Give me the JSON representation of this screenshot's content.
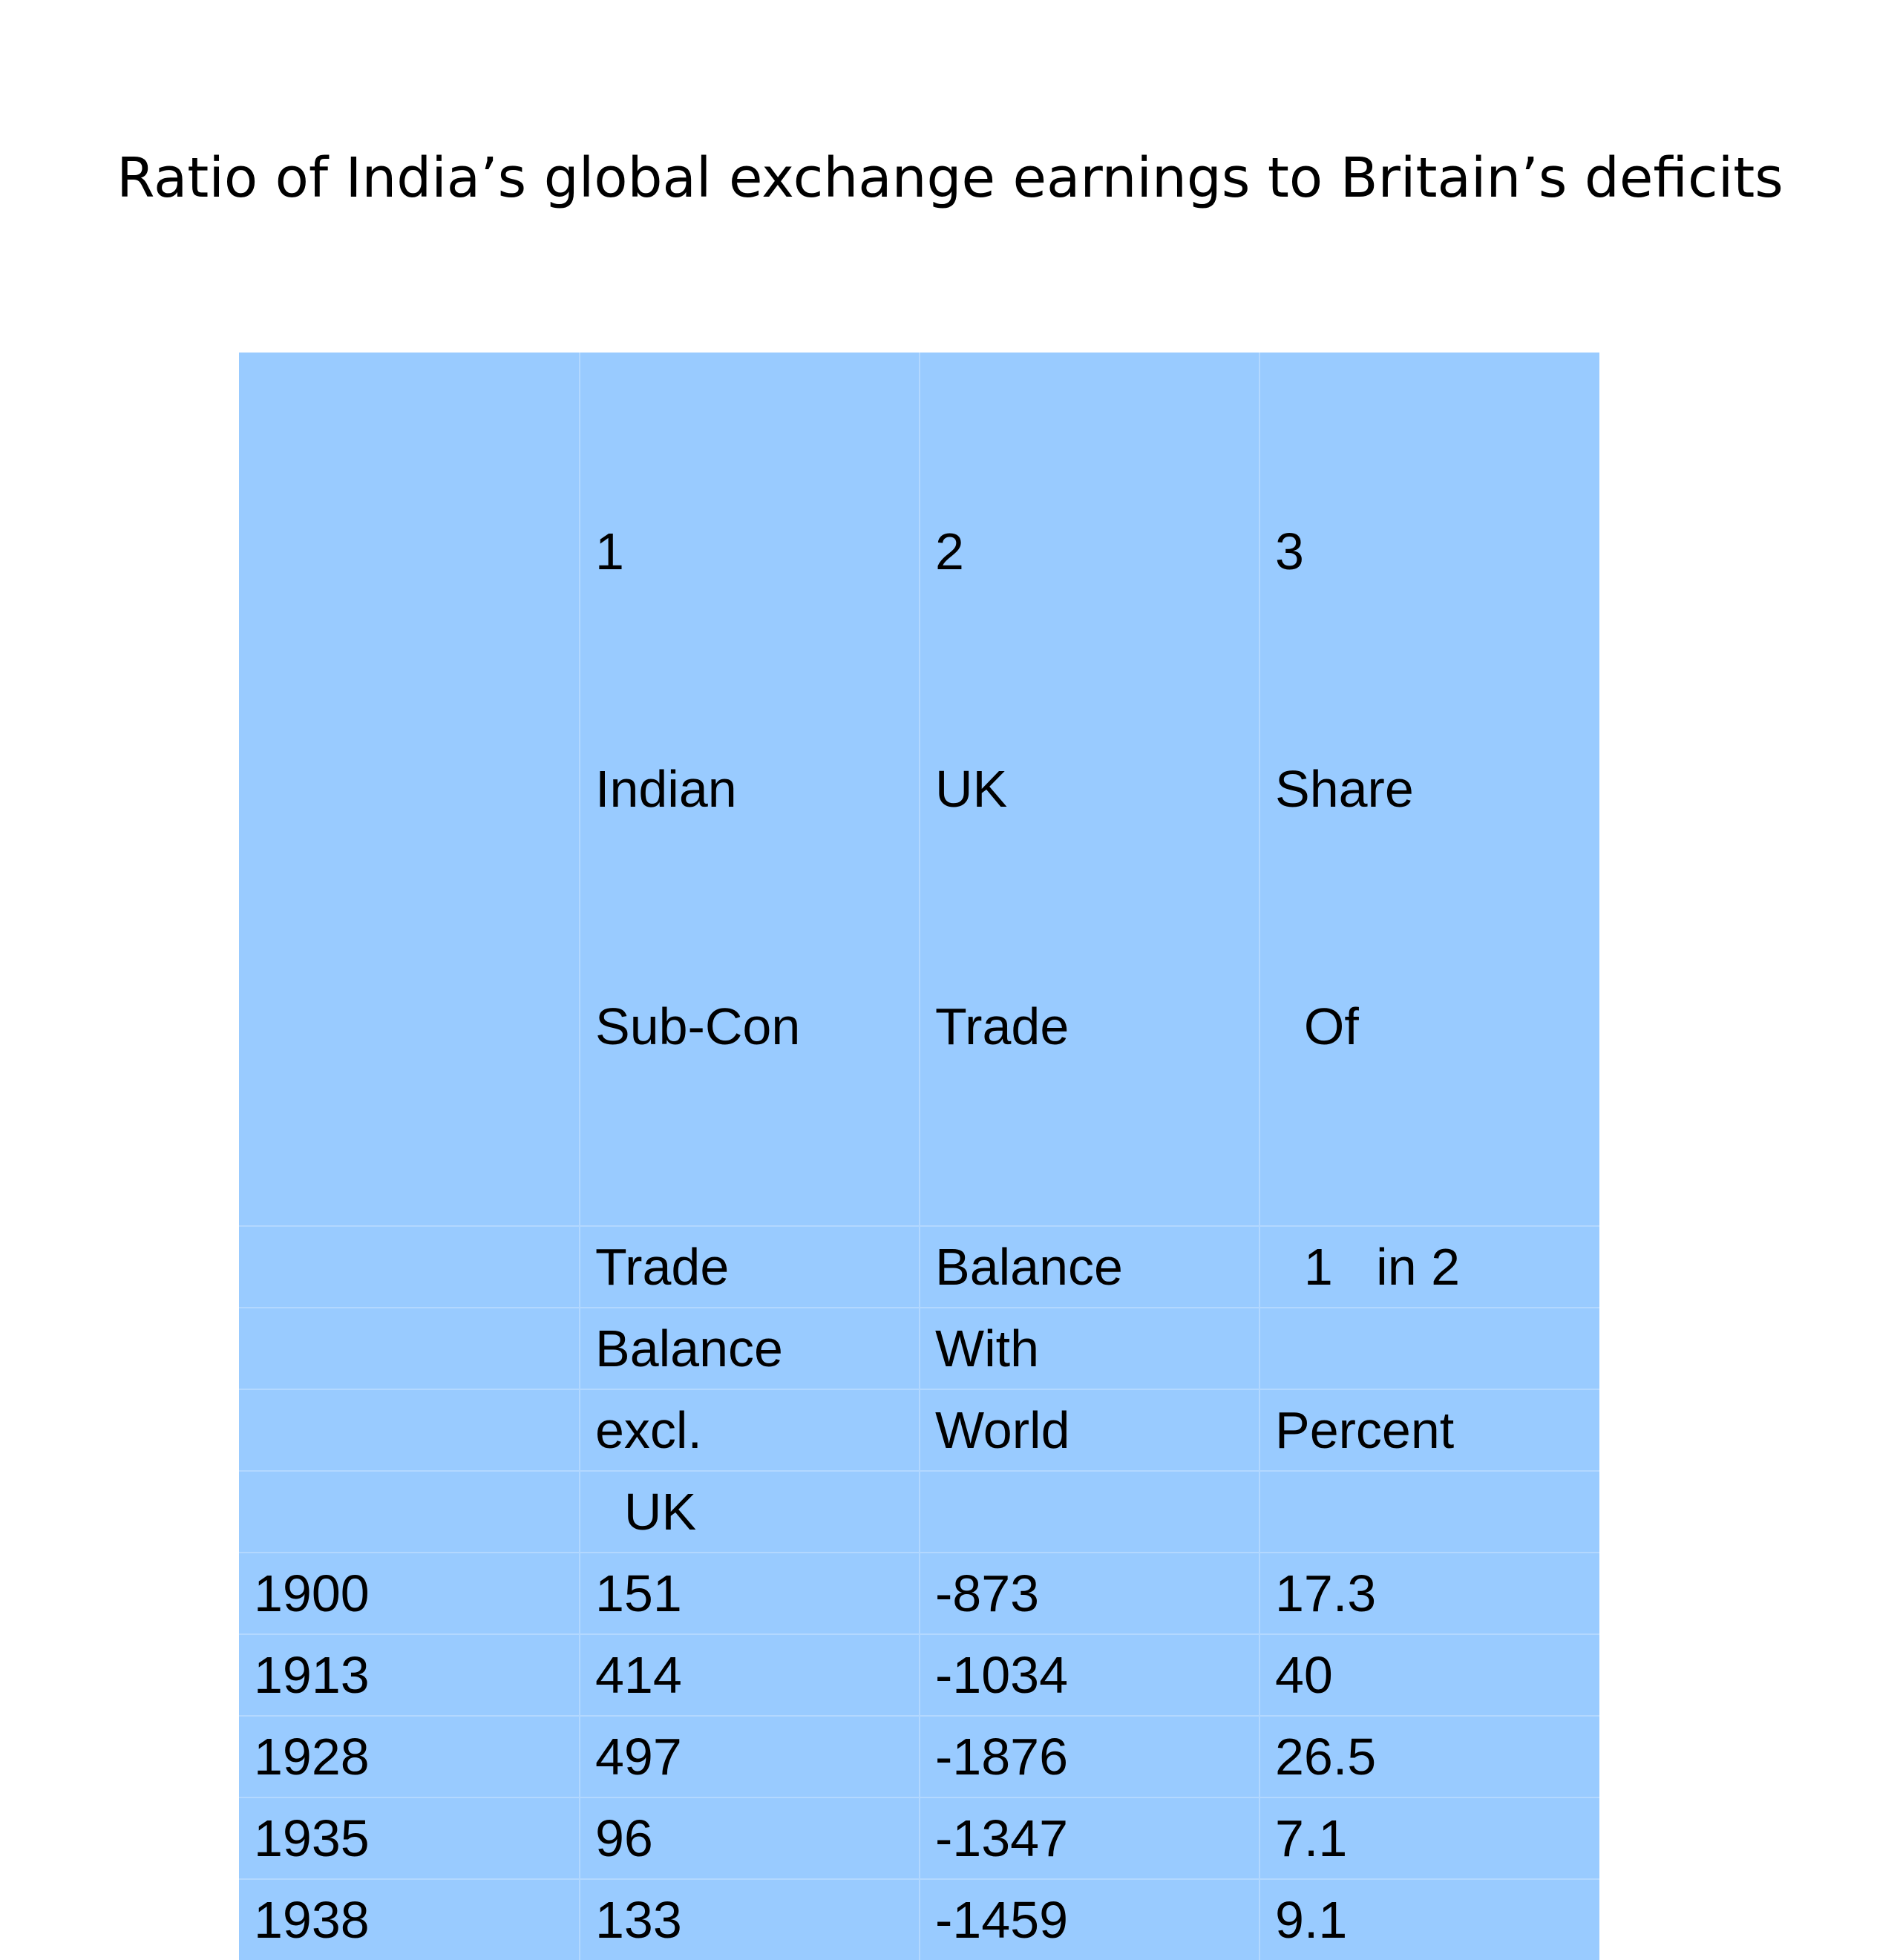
{
  "title": "Ratio of India’s global exchange earnings to Britain’s deficits",
  "table": {
    "header_top": [
      [
        "",
        "",
        ""
      ],
      [
        "1",
        "Indian",
        "Sub-Con"
      ],
      [
        "2",
        "UK",
        "Trade"
      ],
      [
        "3",
        "Share",
        "  Of"
      ]
    ],
    "header_rows": [
      [
        "",
        "Trade",
        "Balance",
        "  1   in 2"
      ],
      [
        "",
        "Balance",
        "With",
        ""
      ],
      [
        "",
        "excl.",
        "World",
        "Percent"
      ],
      [
        "",
        "  UK",
        "",
        ""
      ]
    ],
    "rows": [
      [
        "1900",
        "151",
        "-873",
        "17.3"
      ],
      [
        "1913",
        "414",
        "-1034",
        "40"
      ],
      [
        "1928",
        "497",
        "-1876",
        "26.5"
      ],
      [
        "1935",
        "96",
        "-1347",
        "7.1"
      ],
      [
        "1938",
        "133",
        "-1459",
        "9.1"
      ]
    ]
  },
  "colors": {
    "table_fill": "#99cbff",
    "grid_line": "#b3d8ff"
  }
}
